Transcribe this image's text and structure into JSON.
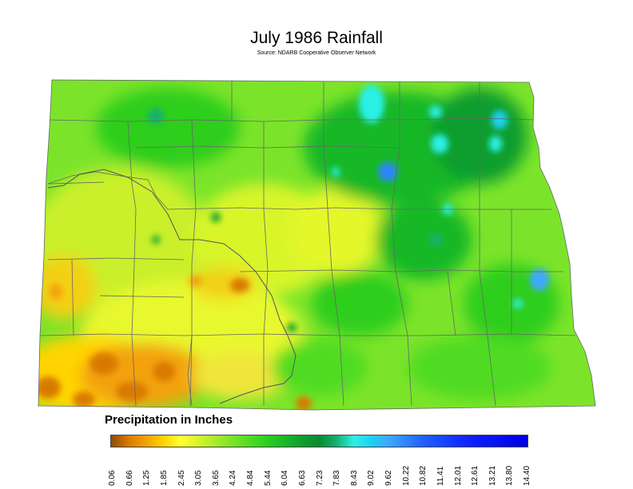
{
  "title": "July 1986 Rainfall",
  "source": "Source: NDARB Cooperative Observer Network",
  "legend": {
    "title": "Precipitation in Inches",
    "ticks": [
      "0.06",
      "0.66",
      "1.25",
      "1.85",
      "2.45",
      "3.05",
      "3.65",
      "4.24",
      "4.84",
      "5.44",
      "6.04",
      "6.63",
      "7.23",
      "7.83",
      "8.43",
      "9.02",
      "9.62",
      "10.22",
      "10.82",
      "11.41",
      "12.01",
      "12.61",
      "13.21",
      "13.80",
      "14.40"
    ],
    "colors": [
      "#8b4a06",
      "#d97a00",
      "#f3a10a",
      "#ffd400",
      "#ffff33",
      "#d8f52a",
      "#a8eb2a",
      "#7be42a",
      "#4fdb23",
      "#2dce1f",
      "#19b826",
      "#0f9e2e",
      "#0a8a34",
      "#16b070",
      "#2cf0e6",
      "#1fd0f5",
      "#3fa8ff",
      "#2f84ff",
      "#2060ff",
      "#1848ff",
      "#1030ff",
      "#0b1cff",
      "#0814f2",
      "#0308e8",
      "#0000e0"
    ]
  }
}
